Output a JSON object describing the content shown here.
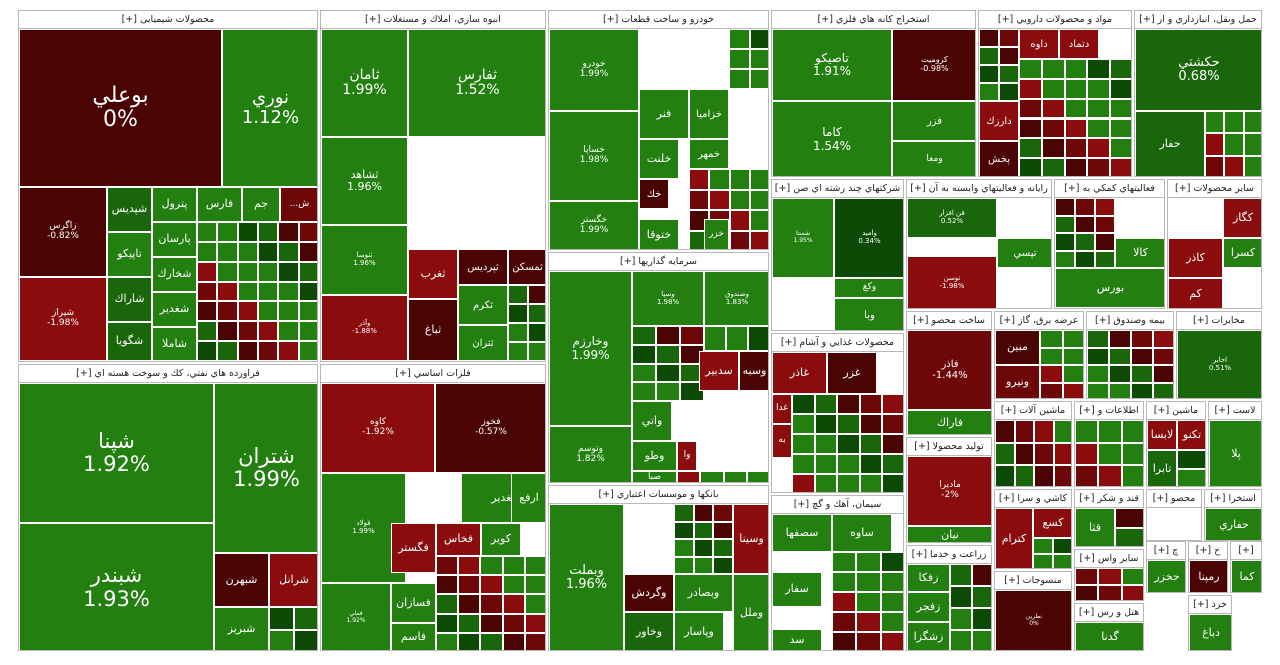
{
  "colors": {
    "g3": "#237f10",
    "g2": "#1a660a",
    "g1": "#0c4a06",
    "bright": "#2fa515",
    "r1": "#8a0c0c",
    "r2": "#6e0808",
    "r3": "#4a0404",
    "border": "#ffffff"
  },
  "chart_data": {
    "type": "treemap",
    "title": "",
    "sectors": [
      {
        "name": "محصولات شیمیایی [+]",
        "tiles": [
          {
            "name": "بوعلي",
            "value": "0%",
            "color": "r3"
          },
          {
            "name": "نوري",
            "value": "1.12%",
            "color": "g3"
          },
          {
            "name": "زاگرس",
            "value": "-0.82%",
            "color": "r3"
          },
          {
            "name": "شيراز",
            "value": "-1.98%",
            "color": "r1"
          },
          {
            "name": "شپديس",
            "value": "",
            "color": "g2"
          },
          {
            "name": "تاپيكو",
            "value": "",
            "color": "g3"
          },
          {
            "name": "شاراك",
            "value": "",
            "color": "g2"
          },
          {
            "name": "شگويا",
            "value": "",
            "color": "g2"
          },
          {
            "name": "پترول",
            "value": "",
            "color": "g3"
          },
          {
            "name": "پارسان",
            "value": "",
            "color": "g3"
          },
          {
            "name": "شخارك",
            "value": "",
            "color": "g3"
          },
          {
            "name": "شغدير",
            "value": "",
            "color": "g3"
          },
          {
            "name": "شاملا",
            "value": "",
            "color": "g3"
          },
          {
            "name": "فارس",
            "value": "",
            "color": "g3"
          },
          {
            "name": "جم",
            "value": "",
            "color": "g3"
          },
          {
            "name": "ش...",
            "value": "",
            "color": "r2"
          }
        ]
      },
      {
        "name": "انبوه سازي، املاك و مستغلات [+]",
        "tiles": [
          {
            "name": "ثامان",
            "value": "1.99%",
            "color": "g3"
          },
          {
            "name": "ثفارس",
            "value": "1.52%",
            "color": "g3"
          },
          {
            "name": "ثشاهد",
            "value": "1.96%",
            "color": "g3"
          },
          {
            "name": "ثنوسا",
            "value": "1.96%",
            "color": "g3"
          },
          {
            "name": "وآذر",
            "value": "-1.88%",
            "color": "r1"
          },
          {
            "name": "ثغرب",
            "value": "",
            "color": "r1"
          },
          {
            "name": "ثباغ",
            "value": "",
            "color": "r3"
          },
          {
            "name": "ثپرديس",
            "value": "",
            "color": "r3"
          },
          {
            "name": "ثمسكن",
            "value": "",
            "color": "r3"
          },
          {
            "name": "ثكرم",
            "value": "",
            "color": "g3"
          },
          {
            "name": "ثتران",
            "value": "",
            "color": "g3"
          }
        ]
      },
      {
        "name": "خودرو و ساخت قطعات [+]",
        "tiles": [
          {
            "name": "خودرو",
            "value": "1.99%",
            "color": "g3"
          },
          {
            "name": "خساپا",
            "value": "1.98%",
            "color": "g3"
          },
          {
            "name": "خگستر",
            "value": "1.99%",
            "color": "g3"
          },
          {
            "name": "فنر",
            "value": "",
            "color": "g3"
          },
          {
            "name": "خزاميا",
            "value": "",
            "color": "g3"
          },
          {
            "name": "خلنت",
            "value": "",
            "color": "g3"
          },
          {
            "name": "خمهر",
            "value": "",
            "color": "g3"
          },
          {
            "name": "خك",
            "value": "",
            "color": "r3"
          },
          {
            "name": "ختوقا",
            "value": "",
            "color": "g3"
          },
          {
            "name": "خزر",
            "value": "",
            "color": "g3"
          }
        ]
      },
      {
        "name": "استخراج كانه هاي فلزي [+]",
        "tiles": [
          {
            "name": "تاصيكو",
            "value": "1.91%",
            "color": "g3"
          },
          {
            "name": "كاما",
            "value": "1.54%",
            "color": "g3"
          },
          {
            "name": "كروميت",
            "value": "-0.98%",
            "color": "r3"
          },
          {
            "name": "فزر",
            "value": "",
            "color": "g3"
          },
          {
            "name": "ومعا",
            "value": "",
            "color": "g3"
          }
        ]
      },
      {
        "name": "مواد و محصولات دارويي [+]",
        "tiles": [
          {
            "name": "داوه",
            "value": "",
            "color": "r1"
          },
          {
            "name": "دتماد",
            "value": "",
            "color": "r1"
          },
          {
            "name": "دارزك",
            "value": "",
            "color": "r1"
          },
          {
            "name": "پخش",
            "value": "",
            "color": "r3"
          }
        ]
      },
      {
        "name": "حمل ونقل، انبارداري و ار [+]",
        "tiles": [
          {
            "name": "حكشتي",
            "value": "0.68%",
            "color": "g2"
          },
          {
            "name": "حفار",
            "value": "",
            "color": "g2"
          }
        ]
      },
      {
        "name": "فراورده هاي نفتي، كك و سوخت هسته اي [+]",
        "tiles": [
          {
            "name": "شپنا",
            "value": "1.92%",
            "color": "g3"
          },
          {
            "name": "شتران",
            "value": "1.99%",
            "color": "g3"
          },
          {
            "name": "شبندر",
            "value": "1.93%",
            "color": "g3"
          },
          {
            "name": "شبهرن",
            "value": "",
            "color": "r3"
          },
          {
            "name": "شرانل",
            "value": "",
            "color": "r1"
          },
          {
            "name": "شبريز",
            "value": "",
            "color": "g3"
          }
        ]
      },
      {
        "name": "فلزات اساسي [+]",
        "tiles": [
          {
            "name": "كاوه",
            "value": "-1.92%",
            "color": "r1"
          },
          {
            "name": "فخوز",
            "value": "-0.57%",
            "color": "r3"
          },
          {
            "name": "فولاد",
            "value": "1.99%",
            "color": "g3"
          },
          {
            "name": "فملي",
            "value": "1.92%",
            "color": "g3"
          },
          {
            "name": "فغدير",
            "value": "",
            "color": "g3"
          },
          {
            "name": "ارفع",
            "value": "",
            "color": "g3"
          },
          {
            "name": "فگستر",
            "value": "",
            "color": "r1"
          },
          {
            "name": "فخاس",
            "value": "",
            "color": "r1"
          },
          {
            "name": "كوير",
            "value": "",
            "color": "g3"
          },
          {
            "name": "فسازان",
            "value": "",
            "color": "g3"
          },
          {
            "name": "فاسم",
            "value": "",
            "color": "g3"
          }
        ]
      },
      {
        "name": "سرمايه گذاريها [+]",
        "tiles": [
          {
            "name": "وخارزم",
            "value": "1.99%",
            "color": "g3"
          },
          {
            "name": "وسپا",
            "value": "1.98%",
            "color": "g3"
          },
          {
            "name": "وصندوق",
            "value": "1.83%",
            "color": "g3"
          },
          {
            "name": "وتوسم",
            "value": "1.82%",
            "color": "g3"
          },
          {
            "name": "وسبه",
            "value": "",
            "color": "r3"
          },
          {
            "name": "سدبير",
            "value": "",
            "color": "r1"
          },
          {
            "name": "واتي",
            "value": "",
            "color": "g3"
          },
          {
            "name": "وطو",
            "value": "",
            "color": "g3"
          },
          {
            "name": "صبا",
            "value": "",
            "color": "g3"
          },
          {
            "name": "وا",
            "value": "",
            "color": "r1"
          }
        ]
      },
      {
        "name": "بانكها و موسسات اعتباري [+]",
        "tiles": [
          {
            "name": "وبملت",
            "value": "1.96%",
            "color": "g3"
          },
          {
            "name": "وسينا",
            "value": "",
            "color": "r1"
          },
          {
            "name": "وگردش",
            "value": "",
            "color": "r3"
          },
          {
            "name": "وبصادر",
            "value": "",
            "color": "g3"
          },
          {
            "name": "وخاور",
            "value": "",
            "color": "g2"
          },
          {
            "name": "وپاسار",
            "value": "",
            "color": "g3"
          },
          {
            "name": "وملل",
            "value": "",
            "color": "g3"
          }
        ]
      },
      {
        "name": "شركتهاي چند رشته اي صن [+]",
        "tiles": [
          {
            "name": "شستا",
            "value": "1.95%",
            "color": "g3"
          },
          {
            "name": "واميد",
            "value": "0.34%",
            "color": "g1"
          },
          {
            "name": "وكغ",
            "value": "",
            "color": "g3"
          },
          {
            "name": "وبا",
            "value": "",
            "color": "g3"
          }
        ]
      },
      {
        "name": "رايانه و فعاليتهاي وابسته به آن [+]",
        "tiles": [
          {
            "name": "فن افزار",
            "value": "0.52%",
            "color": "g2"
          },
          {
            "name": "توسن",
            "value": "-1.98%",
            "color": "r1"
          },
          {
            "name": "تپسي",
            "value": "",
            "color": "g3"
          }
        ]
      },
      {
        "name": "فعاليتهاي كمكي به [+]",
        "tiles": [
          {
            "name": "بورس",
            "value": "",
            "color": "g3"
          },
          {
            "name": "كالا",
            "value": "",
            "color": "g3"
          }
        ]
      },
      {
        "name": "ساير محصولات [+]",
        "tiles": [
          {
            "name": "كگاز",
            "value": "",
            "color": "r1"
          },
          {
            "name": "كسرا",
            "value": "",
            "color": "g3"
          },
          {
            "name": "كاذر",
            "value": "",
            "color": "r1"
          },
          {
            "name": "كم",
            "value": "",
            "color": "r1"
          }
        ]
      },
      {
        "name": "محصولات غذايي و آشام [+]",
        "tiles": [
          {
            "name": "غاذر",
            "value": "",
            "color": "r1"
          },
          {
            "name": "غزر",
            "value": "",
            "color": "r3"
          },
          {
            "name": "غدا",
            "value": "",
            "color": "r1"
          },
          {
            "name": "به",
            "value": "",
            "color": "r1"
          }
        ]
      },
      {
        "name": "ساخت محصو [+]",
        "tiles": [
          {
            "name": "فاذر",
            "value": "-1.44%",
            "color": "r2"
          },
          {
            "name": "فاراك",
            "value": "",
            "color": "g3"
          }
        ]
      },
      {
        "name": "عرضه برق، گاز [+]",
        "tiles": [
          {
            "name": "مبين",
            "value": "",
            "color": "r3"
          },
          {
            "name": "ونيرو",
            "value": "",
            "color": "r2"
          }
        ]
      },
      {
        "name": "بيمه وصندوق [+]",
        "tiles": []
      },
      {
        "name": "مخابرات [+]",
        "tiles": [
          {
            "name": "اخابر",
            "value": "0.51%",
            "color": "g2"
          }
        ]
      },
      {
        "name": "توليد محصولا [+]",
        "tiles": [
          {
            "name": "مادیرا",
            "value": "-2%",
            "color": "r1"
          },
          {
            "name": "نيان",
            "value": "",
            "color": "g3"
          }
        ]
      },
      {
        "name": "ماشين آلات [+]",
        "tiles": []
      },
      {
        "name": "اطلاعات و [+]",
        "tiles": []
      },
      {
        "name": "ماشين [+]",
        "tiles": [
          {
            "name": "لابسا",
            "value": "",
            "color": "r1"
          },
          {
            "name": "تكنو",
            "value": "",
            "color": "r1"
          },
          {
            "name": "تابرا",
            "value": "",
            "color": "g2"
          }
        ]
      },
      {
        "name": "لاست [+]",
        "tiles": [
          {
            "name": "پلا",
            "value": "",
            "color": "g3"
          }
        ]
      },
      {
        "name": "سيمان، آهك و گچ [+]",
        "tiles": [
          {
            "name": "سصفها",
            "value": "",
            "color": "g3"
          },
          {
            "name": "ساوه",
            "value": "",
            "color": "g3"
          },
          {
            "name": "سفار",
            "value": "",
            "color": "g3"
          },
          {
            "name": "سد",
            "value": "",
            "color": "g3"
          }
        ]
      },
      {
        "name": "زراعت و خدما [+]",
        "tiles": [
          {
            "name": "زفكا",
            "value": "",
            "color": "g3"
          },
          {
            "name": "زفجر",
            "value": "",
            "color": "g3"
          },
          {
            "name": "زشگزا",
            "value": "",
            "color": "g3"
          }
        ]
      },
      {
        "name": "منسوجات [+]",
        "tiles": [
          {
            "name": "نطرين",
            "value": "0%",
            "color": "r3"
          }
        ]
      },
      {
        "name": "كاشي و سرا [+]",
        "tiles": [
          {
            "name": "كترام",
            "value": "",
            "color": "r1"
          },
          {
            "name": "كسع",
            "value": "",
            "color": "r1"
          }
        ]
      },
      {
        "name": "قند و شكر [+]",
        "tiles": [
          {
            "name": "قثا",
            "value": "",
            "color": "g3"
          }
        ]
      },
      {
        "name": "محصو [+]",
        "tiles": []
      },
      {
        "name": "استخرا [+]",
        "tiles": [
          {
            "name": "حفاري",
            "value": "",
            "color": "g3"
          }
        ]
      },
      {
        "name": "ساير واس [+]",
        "tiles": []
      },
      {
        "name": "هتل و رس [+]",
        "tiles": [
          {
            "name": "گدنا",
            "value": "",
            "color": "g3"
          }
        ]
      },
      {
        "name": "چ [+]",
        "tiles": [
          {
            "name": "حخزر",
            "value": "",
            "color": "g3"
          }
        ]
      },
      {
        "name": "خ [+]",
        "tiles": [
          {
            "name": "رمپنا",
            "value": "",
            "color": "r3"
          }
        ]
      },
      {
        "name": "[+]",
        "tiles": [
          {
            "name": "كما",
            "value": "",
            "color": "g3"
          }
        ]
      },
      {
        "name": "خرد [+]",
        "tiles": [
          {
            "name": "دباغ",
            "value": "",
            "color": "g3"
          }
        ]
      }
    ]
  }
}
